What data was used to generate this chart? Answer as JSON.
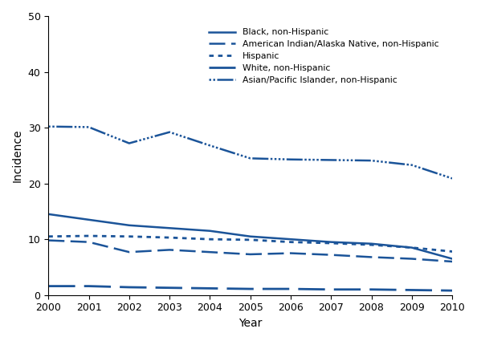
{
  "years": [
    2000,
    2001,
    2002,
    2003,
    2004,
    2005,
    2006,
    2007,
    2008,
    2009,
    2010
  ],
  "series": {
    "Black, non-Hispanic": [
      14.5,
      13.5,
      12.5,
      12.0,
      11.5,
      10.5,
      10.0,
      9.5,
      9.2,
      8.5,
      6.5
    ],
    "American Indian/Alaska Native, non-Hispanic": [
      9.8,
      9.5,
      7.7,
      8.1,
      7.7,
      7.3,
      7.5,
      7.2,
      6.8,
      6.5,
      6.0
    ],
    "Hispanic": [
      10.5,
      10.6,
      10.5,
      10.3,
      10.0,
      9.9,
      9.5,
      9.3,
      9.0,
      8.5,
      7.8
    ],
    "White, non-Hispanic": [
      1.6,
      1.6,
      1.4,
      1.3,
      1.2,
      1.1,
      1.1,
      1.0,
      1.0,
      0.9,
      0.8
    ],
    "Asian/Pacific Islander, non-Hispanic": [
      30.2,
      30.1,
      27.2,
      29.2,
      26.8,
      24.5,
      24.3,
      24.2,
      24.1,
      23.3,
      20.9
    ]
  },
  "color": "#1b5499",
  "xlabel": "Year",
  "ylabel": "Incidence",
  "ylim": [
    0,
    50
  ],
  "yticks": [
    0,
    10,
    20,
    30,
    40,
    50
  ],
  "xlim": [
    2000,
    2010
  ],
  "xticks": [
    2000,
    2001,
    2002,
    2003,
    2004,
    2005,
    2006,
    2007,
    2008,
    2009,
    2010
  ]
}
